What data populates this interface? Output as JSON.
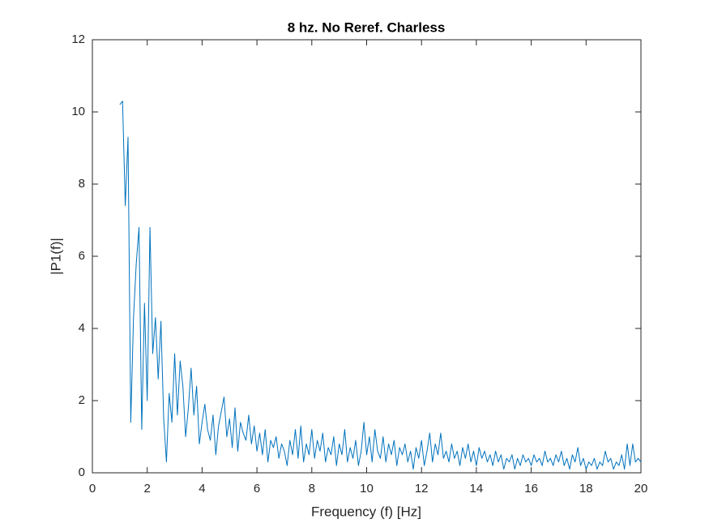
{
  "chart_data": {
    "type": "line",
    "title": "8 hz. No Reref. Charless",
    "xlabel": "Frequency (f) [Hz]",
    "ylabel": "|P1(f)|",
    "x": [
      1,
      1.1,
      1.2,
      1.3,
      1.4,
      1.5,
      1.6,
      1.7,
      1.8,
      1.9,
      2,
      2.1,
      2.2,
      2.3,
      2.4,
      2.5,
      2.6,
      2.7,
      2.8,
      2.9,
      3,
      3.1,
      3.2,
      3.3,
      3.4,
      3.5,
      3.6,
      3.7,
      3.8,
      3.9,
      4,
      4.1,
      4.2,
      4.3,
      4.4,
      4.5,
      4.6,
      4.7,
      4.8,
      4.9,
      5,
      5.1,
      5.2,
      5.3,
      5.4,
      5.5,
      5.6,
      5.7,
      5.8,
      5.9,
      6,
      6.1,
      6.2,
      6.3,
      6.4,
      6.5,
      6.6,
      6.7,
      6.8,
      6.9,
      7,
      7.1,
      7.2,
      7.3,
      7.4,
      7.5,
      7.6,
      7.7,
      7.8,
      7.9,
      8,
      8.1,
      8.2,
      8.3,
      8.4,
      8.5,
      8.6,
      8.7,
      8.8,
      8.9,
      9,
      9.1,
      9.2,
      9.3,
      9.4,
      9.5,
      9.6,
      9.7,
      9.8,
      9.9,
      10,
      10.1,
      10.2,
      10.3,
      10.4,
      10.5,
      10.6,
      10.7,
      10.8,
      10.9,
      11,
      11.1,
      11.2,
      11.3,
      11.4,
      11.5,
      11.6,
      11.7,
      11.8,
      11.9,
      12,
      12.1,
      12.2,
      12.3,
      12.4,
      12.5,
      12.6,
      12.7,
      12.8,
      12.9,
      13,
      13.1,
      13.2,
      13.3,
      13.4,
      13.5,
      13.6,
      13.7,
      13.8,
      13.9,
      14,
      14.1,
      14.2,
      14.3,
      14.4,
      14.5,
      14.6,
      14.7,
      14.8,
      14.9,
      15,
      15.1,
      15.2,
      15.3,
      15.4,
      15.5,
      15.6,
      15.7,
      15.8,
      15.9,
      16,
      16.1,
      16.2,
      16.3,
      16.4,
      16.5,
      16.6,
      16.7,
      16.8,
      16.9,
      17,
      17.1,
      17.2,
      17.3,
      17.4,
      17.5,
      17.6,
      17.7,
      17.8,
      17.9,
      18,
      18.1,
      18.2,
      18.3,
      18.4,
      18.5,
      18.6,
      18.7,
      18.8,
      18.9,
      19,
      19.1,
      19.2,
      19.3,
      19.4,
      19.5,
      19.6,
      19.7,
      19.8,
      19.9,
      20
    ],
    "series": [
      {
        "color": "#0072bd",
        "values": [
          10.2,
          10.3,
          7.4,
          9.3,
          1.4,
          4.3,
          5.8,
          6.8,
          1.2,
          4.7,
          2.0,
          6.8,
          3.3,
          4.3,
          2.6,
          4.2,
          1.5,
          0.3,
          2.2,
          1.4,
          3.3,
          1.6,
          3.1,
          2.4,
          1.0,
          1.8,
          2.9,
          1.6,
          2.4,
          0.8,
          1.4,
          1.9,
          1.2,
          0.9,
          1.6,
          0.5,
          1.3,
          1.7,
          2.1,
          1.0,
          1.5,
          0.7,
          1.8,
          0.6,
          1.4,
          1.1,
          0.9,
          1.6,
          0.8,
          1.3,
          0.6,
          1.1,
          0.5,
          1.2,
          0.3,
          0.9,
          0.7,
          1.0,
          0.4,
          0.8,
          0.6,
          0.2,
          0.9,
          0.5,
          1.2,
          0.4,
          1.3,
          0.3,
          0.8,
          0.5,
          1.2,
          0.4,
          0.9,
          0.6,
          1.1,
          0.3,
          0.7,
          0.5,
          1.0,
          0.2,
          0.8,
          0.5,
          1.2,
          0.3,
          0.7,
          0.4,
          0.9,
          0.2,
          0.6,
          1.4,
          0.5,
          1.0,
          0.3,
          1.2,
          0.6,
          0.4,
          1.0,
          0.3,
          0.8,
          0.5,
          0.9,
          0.2,
          0.7,
          0.5,
          0.8,
          0.3,
          0.6,
          0.1,
          0.7,
          0.4,
          0.9,
          0.2,
          0.6,
          1.1,
          0.3,
          0.8,
          0.5,
          1.1,
          0.4,
          0.6,
          0.3,
          0.8,
          0.4,
          0.6,
          0.2,
          0.7,
          0.4,
          0.8,
          0.3,
          0.6,
          0.2,
          0.7,
          0.4,
          0.6,
          0.3,
          0.5,
          0.2,
          0.6,
          0.3,
          0.5,
          0.1,
          0.4,
          0.3,
          0.5,
          0.1,
          0.4,
          0.2,
          0.5,
          0.3,
          0.4,
          0.2,
          0.5,
          0.3,
          0.4,
          0.2,
          0.6,
          0.3,
          0.4,
          0.2,
          0.5,
          0.3,
          0.6,
          0.2,
          0.4,
          0.1,
          0.5,
          0.3,
          0.7,
          0.2,
          0.4,
          0.1,
          0.3,
          0.2,
          0.4,
          0.1,
          0.3,
          0.2,
          0.6,
          0.3,
          0.4,
          0.1,
          0.3,
          0.2,
          0.5,
          0.1,
          0.8,
          0.2,
          0.8,
          0.3,
          0.4,
          0.3
        ]
      }
    ],
    "xlim": [
      0,
      20
    ],
    "ylim": [
      0,
      12
    ],
    "xticks": [
      0,
      2,
      4,
      6,
      8,
      10,
      12,
      14,
      16,
      18,
      20
    ],
    "yticks": [
      0,
      2,
      4,
      6,
      8,
      10,
      12
    ]
  }
}
